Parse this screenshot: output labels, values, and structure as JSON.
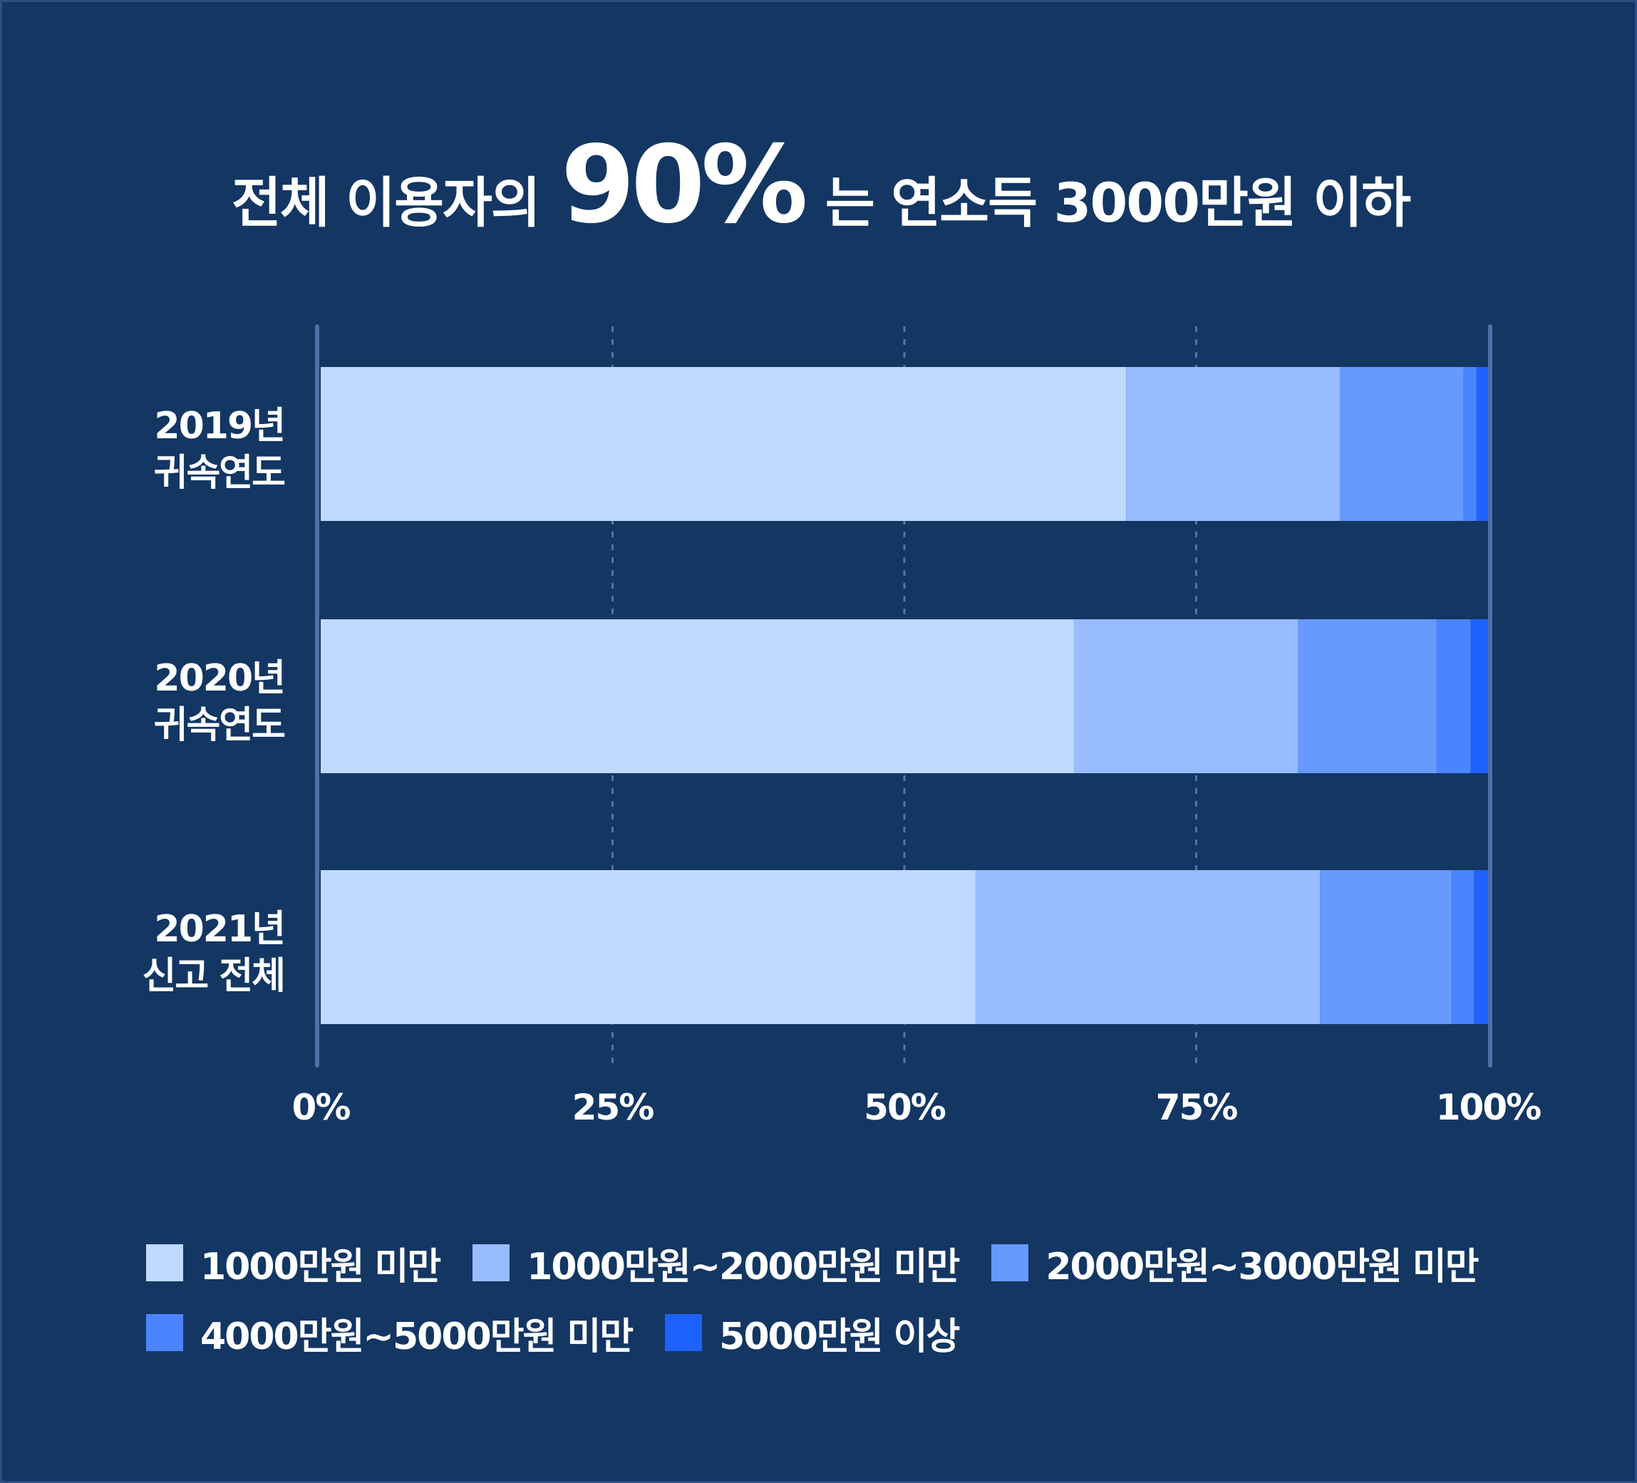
{
  "title": {
    "prefix": "전체 이용자의",
    "highlight": "90%",
    "suffix": "는 연소득 3000만원 이하"
  },
  "chart_data": {
    "type": "bar",
    "orientation": "horizontal",
    "stacked": true,
    "normalized_percent": true,
    "categories": [
      [
        "2019년",
        "귀속연도"
      ],
      [
        "2020년",
        "귀속연도"
      ],
      [
        "2021년",
        "신고 전체"
      ]
    ],
    "series": [
      {
        "name": "1000만원 미만",
        "color": "#bfd9ff",
        "values": [
          69.0,
          64.5,
          56.1
        ]
      },
      {
        "name": "1000만원~2000만원 미만",
        "color": "#98bcff",
        "values": [
          18.3,
          19.2,
          29.5
        ]
      },
      {
        "name": "2000만원~3000만원 미만",
        "color": "#6899ff",
        "values": [
          10.6,
          11.9,
          11.3
        ]
      },
      {
        "name": "4000만원~5000만원 미만",
        "color": "#4b84ff",
        "values": [
          1.1,
          2.9,
          1.9
        ]
      },
      {
        "name": "5000만원 이상",
        "color": "#1e62ff",
        "values": [
          1.0,
          1.5,
          1.2
        ]
      }
    ],
    "xlim": [
      0,
      100
    ],
    "xticks": [
      "0%",
      "25%",
      "50%",
      "75%",
      "100%"
    ],
    "grid": true,
    "legend_position": "bottom"
  }
}
